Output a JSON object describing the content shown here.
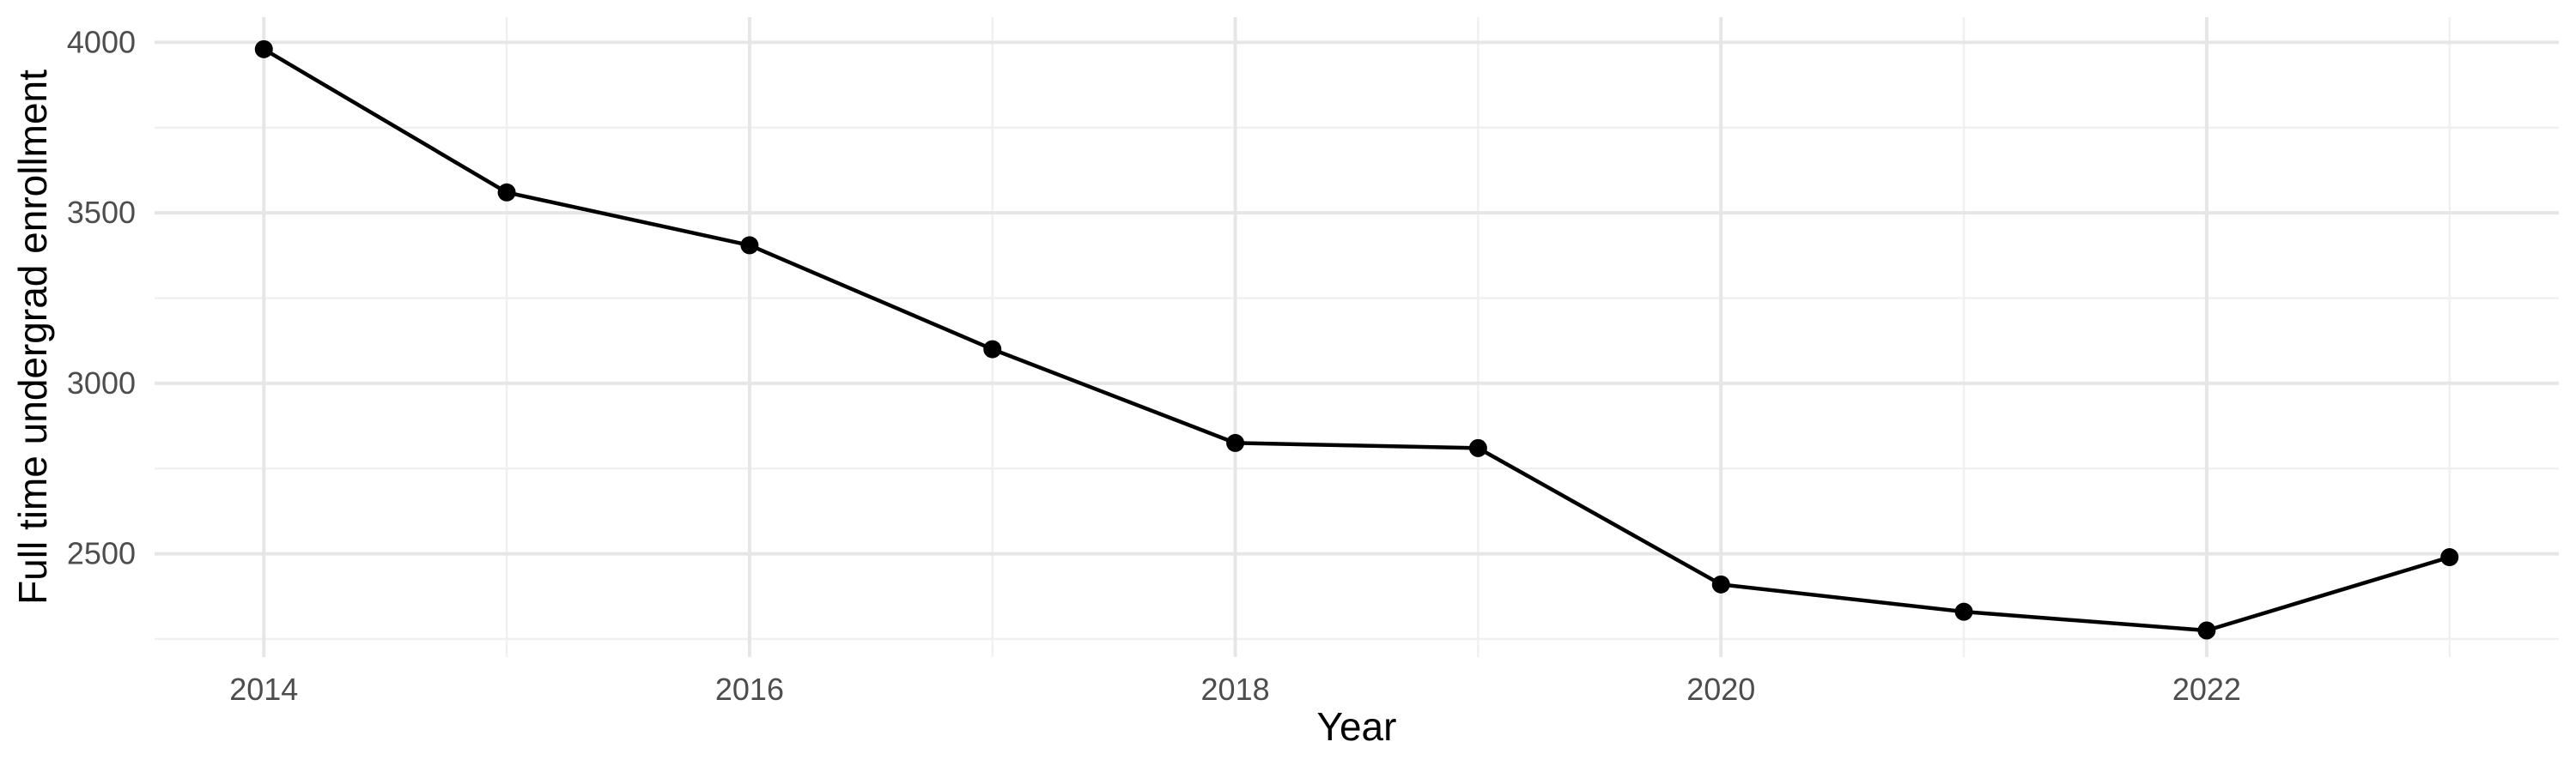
{
  "chart_data": {
    "type": "line",
    "xlabel": "Year",
    "ylabel": "Full time undergrad enrollment",
    "x": [
      2014,
      2015,
      2016,
      2017,
      2018,
      2019,
      2020,
      2021,
      2022,
      2023
    ],
    "values": [
      3980,
      3560,
      3405,
      3100,
      2825,
      2810,
      2410,
      2330,
      2275,
      2490
    ],
    "x_ticks_major": [
      2014,
      2016,
      2018,
      2020,
      2022
    ],
    "x_ticks_minor": [
      2015,
      2017,
      2019,
      2021,
      2023
    ],
    "y_ticks_major": [
      2500,
      3000,
      3500,
      4000
    ],
    "y_ticks_minor": [
      2250,
      2750,
      3250,
      3750
    ],
    "x_range": [
      2013.55,
      2023.45
    ],
    "y_range": [
      2197,
      4074
    ],
    "grid": true,
    "legend": "none",
    "point_marker": "circle",
    "colors": {
      "line": "#000000",
      "point": "#000000",
      "grid_major": "#E6E6E6",
      "grid_minor": "#F0F0F0",
      "tick_label": "#4D4D4D",
      "axis_title": "#000000",
      "background": "#FFFFFF"
    }
  }
}
